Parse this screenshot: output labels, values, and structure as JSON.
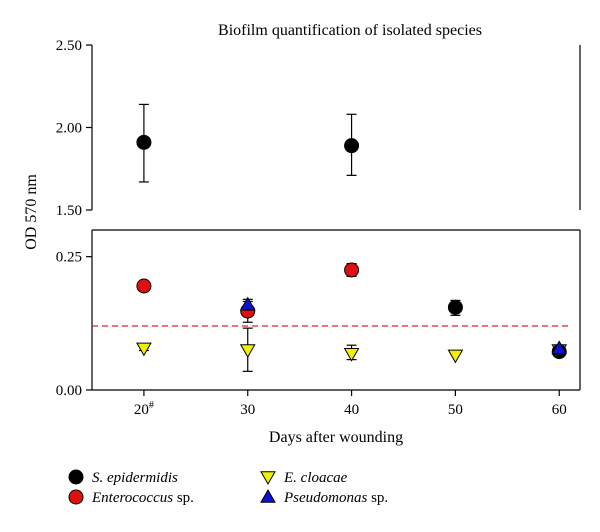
{
  "chart_data": {
    "type": "scatter",
    "title": "Biofilm quantification of isolated species",
    "xlabel": "Days after wounding",
    "ylabel": "OD 570 nm",
    "x_ticks": [
      20,
      30,
      40,
      50,
      60
    ],
    "x_tick_labels": [
      "20",
      "30",
      "40",
      "50",
      "60"
    ],
    "x_tick_superscripts": [
      "#",
      "",
      "",
      "",
      ""
    ],
    "xlim": [
      15,
      62
    ],
    "broken_y_axis": true,
    "panels": [
      {
        "name": "upper",
        "ylim": [
          1.5,
          2.5
        ],
        "ticks": [
          1.5,
          2.0,
          2.5
        ],
        "tick_labels": [
          "1.50",
          "2.00",
          "2.50"
        ]
      },
      {
        "name": "lower",
        "ylim": [
          0.0,
          0.3
        ],
        "ticks": [
          0.0,
          0.25
        ],
        "tick_labels": [
          "0.00",
          "0.25"
        ]
      }
    ],
    "threshold_line": {
      "y": 0.12,
      "style": "dashed",
      "color": "#e02020"
    },
    "series": [
      {
        "name": "S. epidermidis",
        "name_italic": "S. epidermidis",
        "name_suffix": "",
        "marker": "circle",
        "color": "#000000",
        "points": [
          {
            "x": 20,
            "y": 1.91,
            "err_low": 1.67,
            "err_high": 2.14
          },
          {
            "x": 40,
            "y": 1.89,
            "err_low": 1.71,
            "err_high": 2.08
          },
          {
            "x": 50,
            "y": 0.155,
            "err_low": 0.14,
            "err_high": 0.168
          },
          {
            "x": 60,
            "y": 0.072,
            "err_low": 0.065,
            "err_high": 0.08
          }
        ]
      },
      {
        "name": "Enterococcus sp.",
        "name_italic": "Enterococcus",
        "name_suffix": " sp.",
        "marker": "circle",
        "color": "#e01010",
        "points": [
          {
            "x": 20,
            "y": 0.195,
            "err_low": 0.195,
            "err_high": 0.195
          },
          {
            "x": 30,
            "y": 0.148,
            "err_low": 0.127,
            "err_high": 0.166
          },
          {
            "x": 40,
            "y": 0.225,
            "err_low": 0.213,
            "err_high": 0.237
          }
        ]
      },
      {
        "name": "Pseudomonas sp.",
        "name_italic": "Pseudomonas",
        "name_suffix": " sp.",
        "marker": "triangle-up",
        "color": "#1010d0",
        "points": [
          {
            "x": 30,
            "y": 0.16,
            "err_low": 0.15,
            "err_high": 0.17
          },
          {
            "x": 60,
            "y": 0.078,
            "err_low": 0.074,
            "err_high": 0.082
          }
        ]
      },
      {
        "name": "E. cloacae",
        "name_italic": "E. cloacae",
        "name_suffix": "",
        "marker": "triangle-down",
        "color": "#f0f000",
        "points": [
          {
            "x": 20,
            "y": 0.078,
            "err_low": 0.074,
            "err_high": 0.082
          },
          {
            "x": 30,
            "y": 0.075,
            "err_low": 0.035,
            "err_high": 0.116
          },
          {
            "x": 40,
            "y": 0.068,
            "err_low": 0.057,
            "err_high": 0.084
          },
          {
            "x": 50,
            "y": 0.065,
            "err_low": 0.065,
            "err_high": 0.065
          },
          {
            "x": 60,
            "y": 0.075,
            "err_low": 0.068,
            "err_high": 0.08
          }
        ]
      }
    ],
    "legend": {
      "placement": "bottom",
      "order": [
        "S. epidermidis",
        "E. cloacae",
        "Enterococcus sp.",
        "Pseudomonas sp."
      ]
    }
  }
}
